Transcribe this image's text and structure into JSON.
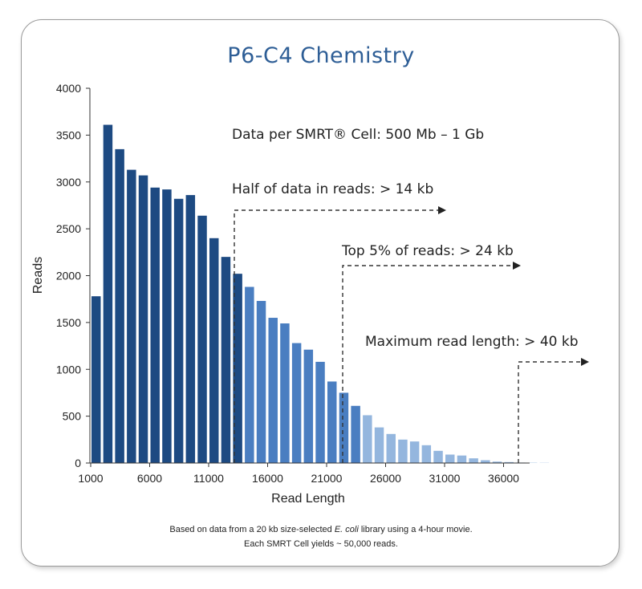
{
  "chart_data": {
    "type": "bar",
    "title": "P6-C4 Chemistry",
    "xlabel": "Read Length",
    "ylabel": "Reads",
    "xlim": [
      1000,
      40000
    ],
    "ylim": [
      0,
      4000
    ],
    "xticks": [
      1000,
      6000,
      11000,
      16000,
      21000,
      26000,
      31000,
      36000
    ],
    "yticks": [
      0,
      500,
      1000,
      1500,
      2000,
      2500,
      3000,
      3500,
      4000
    ],
    "bin_width": 1000,
    "x": [
      1000,
      2000,
      3000,
      4000,
      5000,
      6000,
      7000,
      8000,
      9000,
      10000,
      11000,
      12000,
      13000,
      14000,
      15000,
      16000,
      17000,
      18000,
      19000,
      20000,
      21000,
      22000,
      23000,
      24000,
      25000,
      26000,
      27000,
      28000,
      29000,
      30000,
      31000,
      32000,
      33000,
      34000,
      35000,
      36000,
      37000,
      38000,
      39000
    ],
    "values": [
      1780,
      3610,
      3350,
      3130,
      3070,
      2940,
      2920,
      2820,
      2860,
      2640,
      2400,
      2200,
      2020,
      1880,
      1730,
      1550,
      1490,
      1280,
      1210,
      1080,
      870,
      750,
      610,
      510,
      380,
      310,
      250,
      230,
      190,
      130,
      90,
      80,
      50,
      30,
      15,
      10,
      5,
      3,
      2
    ],
    "colors": {
      "dark": "#1d4a82",
      "mid": "#4a7ec1",
      "light": "#94b6de"
    },
    "color_groups": [
      {
        "from": 1000,
        "to": 13000,
        "color": "dark"
      },
      {
        "from": 14000,
        "to": 23000,
        "color": "mid"
      },
      {
        "from": 24000,
        "to": 39000,
        "color": "light"
      }
    ],
    "annotations": [
      {
        "text": "Data per SMRT® Cell: 500 Mb – 1 Gb"
      },
      {
        "text": "Half of data in reads: > 14 kb",
        "x": 14000
      },
      {
        "text": "Top 5% of reads: > 24 kb",
        "x": 24000
      },
      {
        "text": "Maximum read length: > 40 kb",
        "x": 40000
      }
    ],
    "grid": false
  },
  "footnote": {
    "line1_pre": "Based on data from a 20 kb size-selected ",
    "line1_italic": "E. coli",
    "line1_post": " library using a 4-hour movie.",
    "line2": "Each SMRT Cell yields ~ 50,000 reads."
  }
}
